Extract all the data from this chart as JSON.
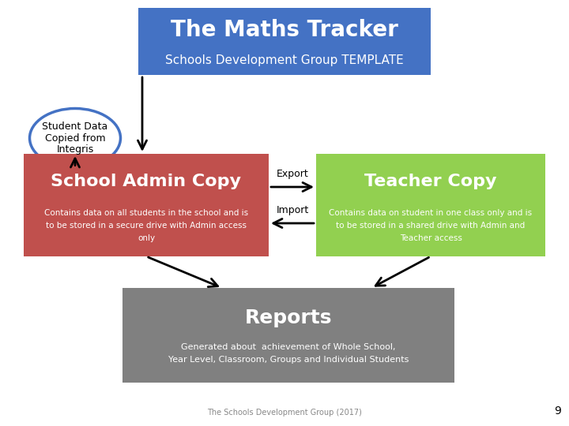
{
  "title": "The Maths Tracker",
  "subtitle": "Schools Development Group TEMPLATE",
  "title_box_color": "#4472C4",
  "title_box_edge": "#2E5090",
  "title_text_color": "#FFFFFF",
  "subtitle_text_color": "#FFFFFF",
  "ellipse_text": "Student Data\nCopied from\nIntegris",
  "ellipse_color": "#FFFFFF",
  "ellipse_edge_color": "#4472C4",
  "ellipse_text_color": "#000000",
  "admin_box_color": "#C0504D",
  "admin_box_edge": "#9C3B39",
  "admin_title": "School Admin Copy",
  "admin_title_color": "#FFFFFF",
  "admin_body": "Contains data on all students in the school and is\nto be stored in a secure drive with Admin access\nonly",
  "admin_bold_words": [
    "secure",
    "drive"
  ],
  "admin_body_color": "#FFFFFF",
  "teacher_box_color": "#92D050",
  "teacher_box_edge": "#6BA03C",
  "teacher_title": "Teacher Copy",
  "teacher_title_color": "#FFFFFF",
  "teacher_body": "Contains data on student in one class only and is\nto be stored in a shared drive with Admin and\nTeacher access",
  "teacher_bold_words": [
    "shared",
    "drive"
  ],
  "teacher_body_color": "#FFFFFF",
  "reports_box_color": "#808080",
  "reports_box_edge": "#606060",
  "reports_title": "Reports",
  "reports_title_color": "#FFFFFF",
  "reports_body": "Generated about  achievement of Whole School,\nYear Level, Classroom, Groups and Individual Students",
  "reports_body_color": "#FFFFFF",
  "export_label": "Export",
  "import_label": "Import",
  "arrow_color": "#000000",
  "page_number": "9",
  "footer_text": "The Schools Development Group (2017)",
  "footer_color": "#888888",
  "bg_color": "#FFFFFF"
}
